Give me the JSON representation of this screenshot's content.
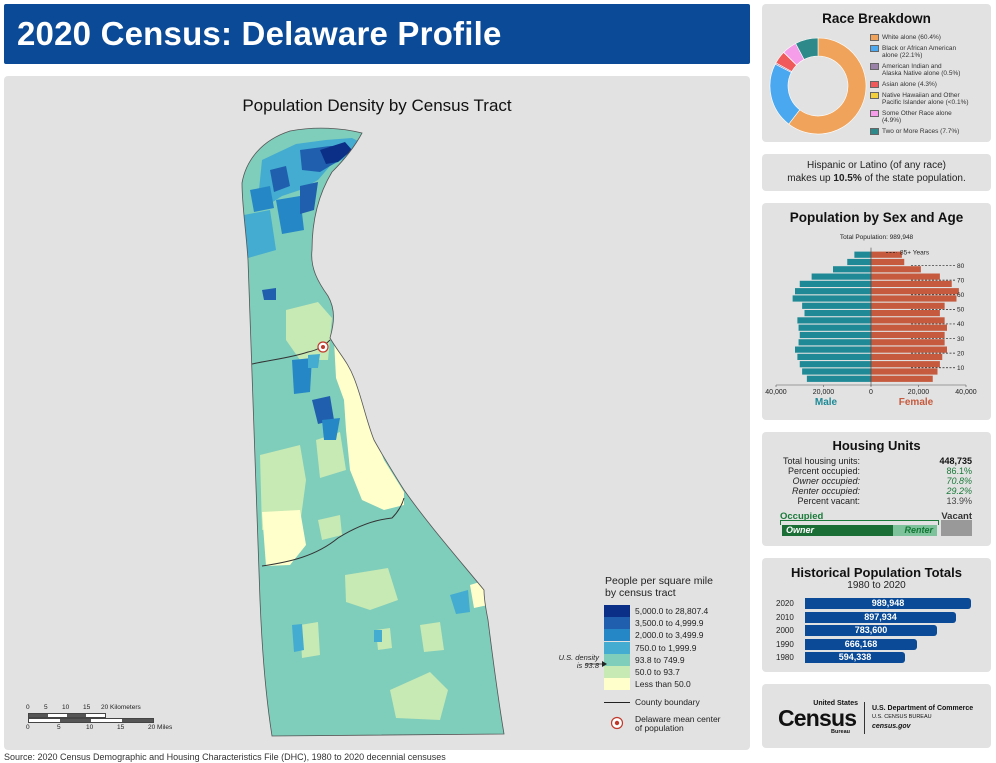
{
  "title": "2020 Census: Delaware Profile",
  "source": "Source: 2020 Census Demographic and Housing Characteristics File (DHC), 1980 to 2020 decennial censuses",
  "map": {
    "title": "Population Density by Census Tract",
    "legend_title_line1": "People per square mile",
    "legend_title_line2": "by census tract",
    "classes": [
      {
        "label": "5,000.0 to 28,807.4",
        "color": "#0b2f86"
      },
      {
        "label": "3,500.0 to 4,999.9",
        "color": "#1f5fae"
      },
      {
        "label": "2,000.0 to 3,499.9",
        "color": "#2687c6"
      },
      {
        "label": "750.0 to 1,999.9",
        "color": "#43acd0"
      },
      {
        "label": "93.8 to 749.9",
        "color": "#7fcdbb"
      },
      {
        "label": "50.0 to 93.7",
        "color": "#c7e9b4"
      },
      {
        "label": "Less than 50.0",
        "color": "#ffffcc"
      }
    ],
    "us_density_line1": "U.S. density",
    "us_density_line2": "is 93.8",
    "county_boundary_label": "County boundary",
    "center_label_line1": "Delaware mean center",
    "center_label_line2": "of population",
    "scale_km_ticks": [
      "0",
      "5",
      "10",
      "15",
      "20 Kilometers"
    ],
    "scale_mi_ticks": [
      "0",
      "5",
      "10",
      "15",
      "20 Miles"
    ]
  },
  "race": {
    "title": "Race Breakdown",
    "items": [
      {
        "label1": "White alone (60.4%)",
        "label2": "",
        "value": 60.4,
        "color": "#f0a35a"
      },
      {
        "label1": "Black or African American",
        "label2": "alone (22.1%)",
        "value": 22.1,
        "color": "#4aa8f0"
      },
      {
        "label1": "American Indian and",
        "label2": "Alaska Native alone (0.5%)",
        "value": 0.5,
        "color": "#9b82a8"
      },
      {
        "label1": "Asian alone (4.3%)",
        "label2": "",
        "value": 4.3,
        "color": "#f05a5a"
      },
      {
        "label1": "Native Hawaiian and Other",
        "label2": "Pacific Islander alone (<0.1%)",
        "value": 0.08,
        "color": "#f2cf3d"
      },
      {
        "label1": "Some Other Race alone",
        "label2": "(4.9%)",
        "value": 4.9,
        "color": "#f59de8"
      },
      {
        "label1": "Two or More Races (7.7%)",
        "label2": "",
        "value": 7.7,
        "color": "#2e8a8a"
      }
    ]
  },
  "hispanic": {
    "line1": "Hispanic or Latino (of any race)",
    "line2_pre": "makes up ",
    "line2_value": "10.5%",
    "line2_post": " of the state population."
  },
  "pyramid": {
    "title": "Population by Sex and Age",
    "total_label": "Total Population: 989,948",
    "top_label": "85+ Years",
    "age_ticks": [
      "80",
      "70",
      "60",
      "50",
      "40",
      "30",
      "20",
      "10"
    ],
    "x_ticks": [
      "40,000",
      "20,000",
      "0",
      "20,000",
      "40,000"
    ],
    "male_label": "Male",
    "female_label": "Female",
    "male_color": "#1f8a96",
    "female_color": "#c55a3e",
    "x_max": 40000,
    "age_groups": [
      "0-4",
      "5-9",
      "10-14",
      "15-19",
      "20-24",
      "25-29",
      "30-34",
      "35-39",
      "40-44",
      "45-49",
      "50-54",
      "55-59",
      "60-64",
      "65-69",
      "70-74",
      "75-79",
      "80-84",
      "85+"
    ],
    "male": [
      27000,
      29000,
      30000,
      31000,
      32000,
      30500,
      30000,
      30500,
      31000,
      28000,
      29000,
      33000,
      32000,
      30000,
      25000,
      16000,
      10000,
      7000
    ],
    "female": [
      26000,
      28000,
      29000,
      30000,
      32000,
      31000,
      31000,
      32000,
      31000,
      29000,
      31000,
      36000,
      37000,
      34000,
      29000,
      21000,
      14000,
      13000
    ]
  },
  "housing": {
    "title": "Housing Units",
    "rows": [
      {
        "label": "Total housing units:",
        "value": "448,735",
        "style": "bold"
      },
      {
        "label": "Percent occupied:",
        "value": "86.1%",
        "style": "green"
      },
      {
        "label": "Owner occupied:",
        "value": "70.8%",
        "style": "green-italic"
      },
      {
        "label": "Renter occupied:",
        "value": "29.2%",
        "style": "green-italic"
      },
      {
        "label": "Percent vacant:",
        "value": "13.9%",
        "style": "gray"
      }
    ],
    "occupied_label": "Occupied",
    "vacant_label": "Vacant",
    "owner_label": "Owner",
    "renter_label": "Renter",
    "occupied_pct": 86.1,
    "owner_pct": 70.8
  },
  "historical": {
    "title": "Historical Population Totals",
    "subtitle": "1980 to 2020",
    "rows": [
      {
        "year": "2020",
        "value": 989948,
        "label": "989,948"
      },
      {
        "year": "2010",
        "value": 897934,
        "label": "897,934"
      },
      {
        "year": "2000",
        "value": 783600,
        "label": "783,600"
      },
      {
        "year": "1990",
        "value": 666168,
        "label": "666,168"
      },
      {
        "year": "1980",
        "value": 594338,
        "label": "594,338"
      }
    ]
  },
  "logo": {
    "brand_top": "United States",
    "brand": "Census",
    "brand_bottom": "Bureau",
    "dept": "U.S. Department of Commerce",
    "bureau": "U.S. CENSUS BUREAU",
    "url": "census.gov"
  },
  "chart_data": [
    {
      "type": "pie",
      "title": "Race Breakdown",
      "categories": [
        "White alone",
        "Black or African American alone",
        "American Indian and Alaska Native alone",
        "Asian alone",
        "Native Hawaiian and Other Pacific Islander alone",
        "Some Other Race alone",
        "Two or More Races"
      ],
      "values": [
        60.4,
        22.1,
        0.5,
        4.3,
        0.08,
        4.9,
        7.7
      ]
    },
    {
      "type": "bar",
      "title": "Population by Sex and Age",
      "categories": [
        "0-4",
        "5-9",
        "10-14",
        "15-19",
        "20-24",
        "25-29",
        "30-34",
        "35-39",
        "40-44",
        "45-49",
        "50-54",
        "55-59",
        "60-64",
        "65-69",
        "70-74",
        "75-79",
        "80-84",
        "85+"
      ],
      "series": [
        {
          "name": "Male",
          "values": [
            27000,
            29000,
            30000,
            31000,
            32000,
            30500,
            30000,
            30500,
            31000,
            28000,
            29000,
            33000,
            32000,
            30000,
            25000,
            16000,
            10000,
            7000
          ]
        },
        {
          "name": "Female",
          "values": [
            26000,
            28000,
            29000,
            30000,
            32000,
            31000,
            31000,
            32000,
            31000,
            29000,
            31000,
            36000,
            37000,
            34000,
            29000,
            21000,
            14000,
            13000
          ]
        }
      ],
      "xlim": [
        -40000,
        40000
      ]
    },
    {
      "type": "bar",
      "title": "Historical Population Totals",
      "categories": [
        "2020",
        "2010",
        "2000",
        "1990",
        "1980"
      ],
      "values": [
        989948,
        897934,
        783600,
        666168,
        594338
      ]
    }
  ]
}
